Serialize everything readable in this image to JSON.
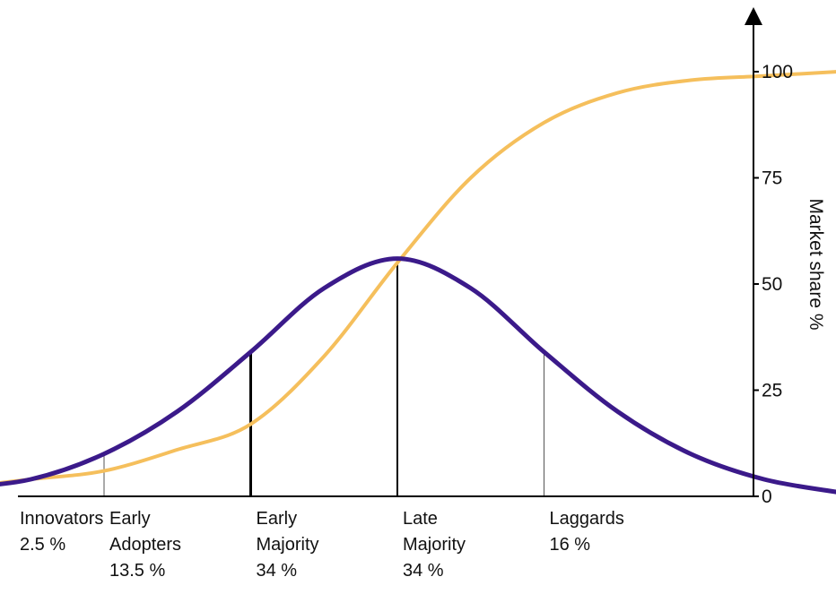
{
  "chart_data": {
    "type": "line",
    "title": "",
    "xlabel": "",
    "ylabel": "Market share %",
    "ylim": [
      0,
      100
    ],
    "yticks": [
      0,
      25,
      50,
      75,
      100
    ],
    "y_axis_position": "right",
    "grid": false,
    "legend": "none",
    "x_range_sd": [
      -3,
      3
    ],
    "series": [
      {
        "kind": "adoption-distribution",
        "color": "#3b1a8a",
        "points": [
          {
            "x": -3.0,
            "y": 2
          },
          {
            "x": -2.5,
            "y": 4
          },
          {
            "x": -2.0,
            "y": 10
          },
          {
            "x": -1.5,
            "y": 20
          },
          {
            "x": -1.0,
            "y": 34
          },
          {
            "x": -0.5,
            "y": 49
          },
          {
            "x": 0.0,
            "y": 56
          },
          {
            "x": 0.5,
            "y": 49
          },
          {
            "x": 1.0,
            "y": 34
          },
          {
            "x": 1.5,
            "y": 20
          },
          {
            "x": 2.0,
            "y": 10
          },
          {
            "x": 2.5,
            "y": 4
          },
          {
            "x": 3.0,
            "y": 1
          }
        ]
      },
      {
        "kind": "cumulative-market-share",
        "color": "#f5bf5c",
        "points": [
          {
            "x": -3.0,
            "y": 2
          },
          {
            "x": -2.5,
            "y": 4
          },
          {
            "x": -2.0,
            "y": 6
          },
          {
            "x": -1.5,
            "y": 11
          },
          {
            "x": -1.0,
            "y": 17
          },
          {
            "x": -0.5,
            "y": 33
          },
          {
            "x": 0.0,
            "y": 55
          },
          {
            "x": 0.5,
            "y": 75
          },
          {
            "x": 1.0,
            "y": 88
          },
          {
            "x": 1.5,
            "y": 95
          },
          {
            "x": 2.0,
            "y": 98
          },
          {
            "x": 2.5,
            "y": 99
          },
          {
            "x": 3.0,
            "y": 100
          }
        ]
      }
    ],
    "dividers": [
      {
        "x": -2.0,
        "height_pct": 10,
        "weight": "thin"
      },
      {
        "x": -1.0,
        "height_pct": 34,
        "weight": "bold"
      },
      {
        "x": 0.0,
        "height_pct": 56,
        "weight": "medium"
      },
      {
        "x": 1.0,
        "height_pct": 34,
        "weight": "thin"
      }
    ],
    "segments": [
      {
        "x_start": -3.0,
        "lines": [
          "Innovators",
          "2.5 %"
        ]
      },
      {
        "x_start": -2.0,
        "lines": [
          "Early",
          "Adopters",
          "13.5 %"
        ]
      },
      {
        "x_start": -1.0,
        "lines": [
          "Early",
          "Majority",
          "34 %"
        ]
      },
      {
        "x_start": 0.0,
        "lines": [
          "Late",
          "Majority",
          "34 %"
        ]
      },
      {
        "x_start": 1.0,
        "lines": [
          "Laggards",
          "16 %"
        ]
      }
    ]
  }
}
